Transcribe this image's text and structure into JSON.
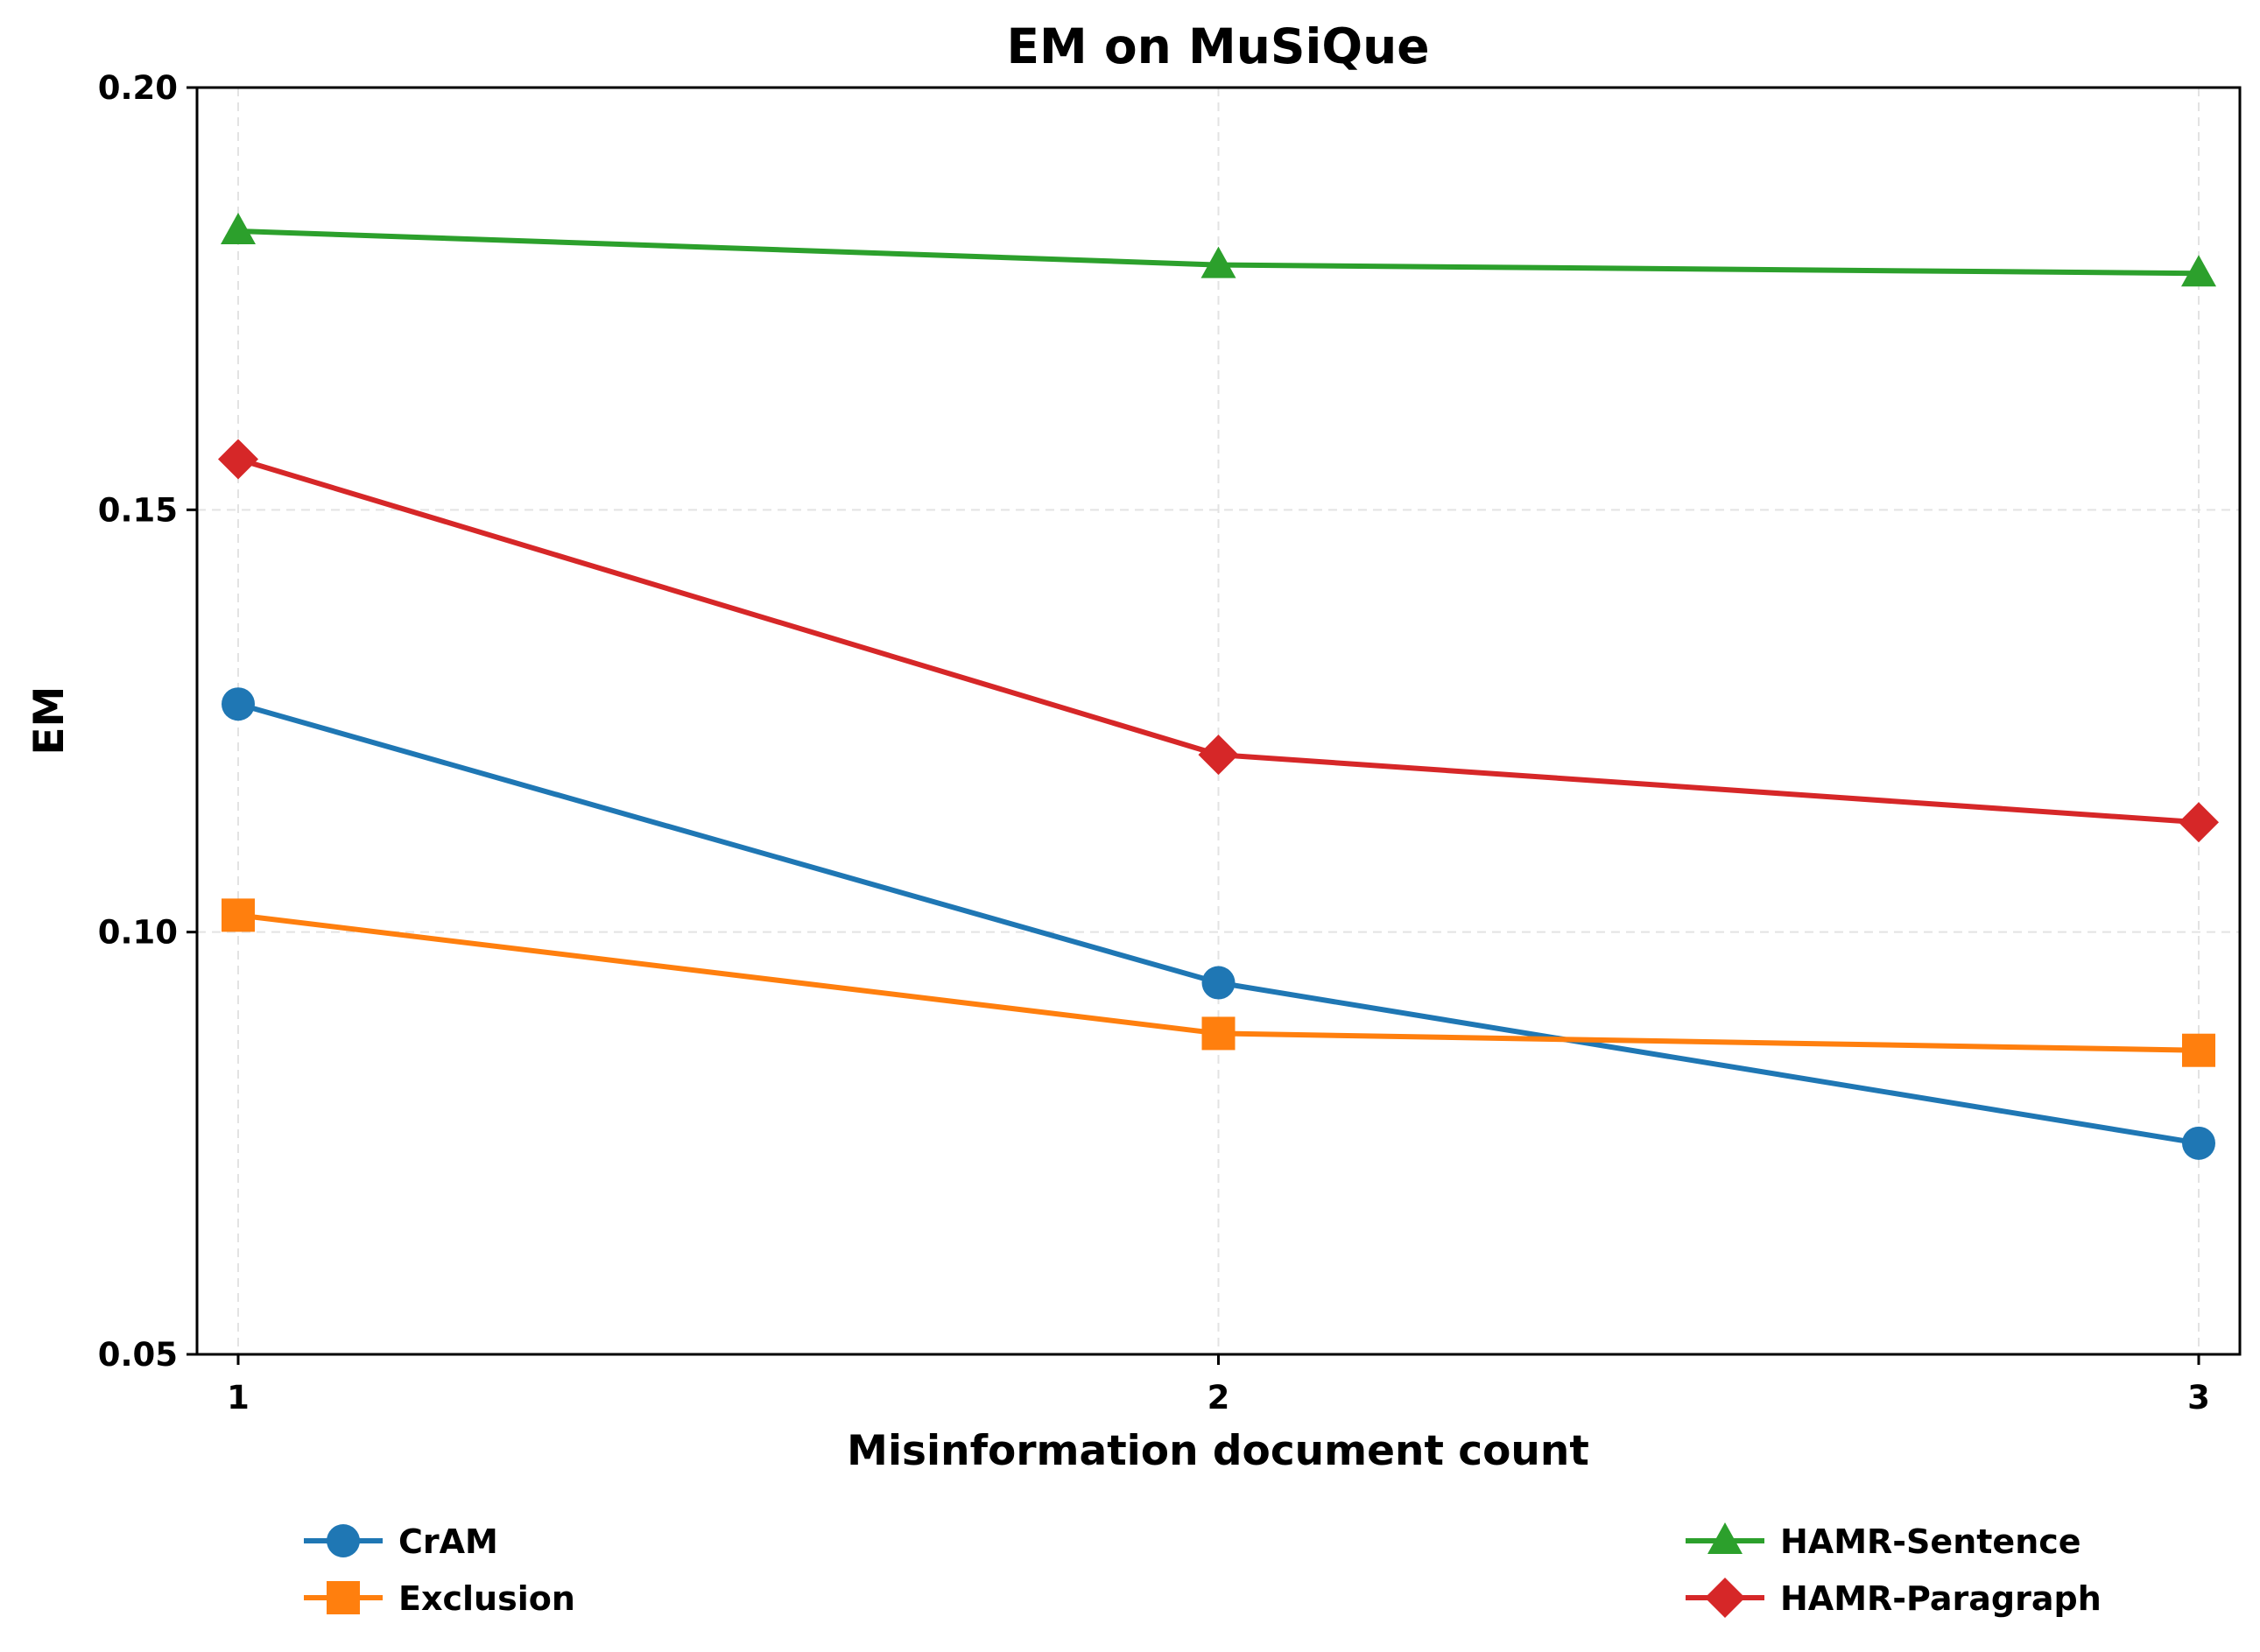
{
  "chart_data": {
    "type": "line",
    "title": "EM on MuSiQue",
    "xlabel": "Misinformation document count",
    "ylabel": "EM",
    "x": [
      1,
      2,
      3
    ],
    "x_tick_labels": [
      "1",
      "2",
      "3"
    ],
    "ylim": [
      0.05,
      0.2
    ],
    "y_ticks": [
      0.05,
      0.1,
      0.15,
      0.2
    ],
    "y_tick_labels": [
      "0.05",
      "0.10",
      "0.15",
      "0.20"
    ],
    "grid": true,
    "legend_position": "below",
    "series": [
      {
        "name": "CrAM",
        "values": [
          0.127,
          0.094,
          0.075
        ],
        "color": "#1f77b4",
        "marker": "circle"
      },
      {
        "name": "Exclusion",
        "values": [
          0.102,
          0.088,
          0.086
        ],
        "color": "#ff7f0e",
        "marker": "square"
      },
      {
        "name": "HAMR-Sentence",
        "values": [
          0.183,
          0.179,
          0.178
        ],
        "color": "#2ca02c",
        "marker": "triangle"
      },
      {
        "name": "HAMR-Paragraph",
        "values": [
          0.156,
          0.121,
          0.113
        ],
        "color": "#d62728",
        "marker": "diamond"
      }
    ]
  }
}
